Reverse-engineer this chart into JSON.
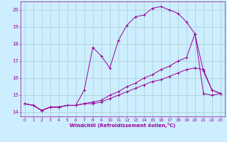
{
  "xlabel": "Windchill (Refroidissement éolien,°C)",
  "background_color": "#cceeff",
  "grid_color": "#aacccc",
  "line_color": "#990099",
  "xlim": [
    -0.5,
    23.5
  ],
  "ylim": [
    13.75,
    20.5
  ],
  "xticks": [
    0,
    1,
    2,
    3,
    4,
    5,
    6,
    7,
    8,
    9,
    10,
    11,
    12,
    13,
    14,
    15,
    16,
    17,
    18,
    19,
    20,
    21,
    22,
    23
  ],
  "yticks": [
    14,
    15,
    16,
    17,
    18,
    19,
    20
  ],
  "curve1_x": [
    0,
    1,
    2,
    3,
    4,
    5,
    6,
    7,
    8,
    9,
    10,
    11,
    12,
    13,
    14,
    15,
    16,
    17,
    18,
    19,
    20,
    21,
    22,
    23
  ],
  "curve1_y": [
    14.5,
    14.4,
    14.1,
    14.3,
    14.3,
    14.4,
    14.4,
    15.3,
    17.8,
    17.3,
    16.6,
    18.2,
    19.1,
    19.6,
    19.7,
    20.1,
    20.2,
    20.0,
    19.8,
    19.3,
    18.6,
    15.1,
    15.0,
    15.1
  ],
  "curve2_x": [
    0,
    1,
    2,
    3,
    4,
    5,
    6,
    7,
    8,
    9,
    10,
    11,
    12,
    13,
    14,
    15,
    16,
    17,
    18,
    19,
    20,
    21,
    22,
    23
  ],
  "curve2_y": [
    14.5,
    14.4,
    14.1,
    14.3,
    14.3,
    14.4,
    14.4,
    14.5,
    14.5,
    14.6,
    14.8,
    15.0,
    15.2,
    15.4,
    15.6,
    15.8,
    15.9,
    16.1,
    16.3,
    16.5,
    16.6,
    16.5,
    15.3,
    15.1
  ],
  "curve3_x": [
    0,
    1,
    2,
    3,
    4,
    5,
    6,
    7,
    8,
    9,
    10,
    11,
    12,
    13,
    14,
    15,
    16,
    17,
    18,
    19,
    20,
    21,
    22,
    23
  ],
  "curve3_y": [
    14.5,
    14.4,
    14.1,
    14.3,
    14.3,
    14.4,
    14.4,
    14.5,
    14.6,
    14.7,
    15.0,
    15.2,
    15.5,
    15.7,
    16.0,
    16.2,
    16.5,
    16.7,
    17.0,
    17.2,
    18.6,
    16.4,
    15.3,
    15.1
  ]
}
